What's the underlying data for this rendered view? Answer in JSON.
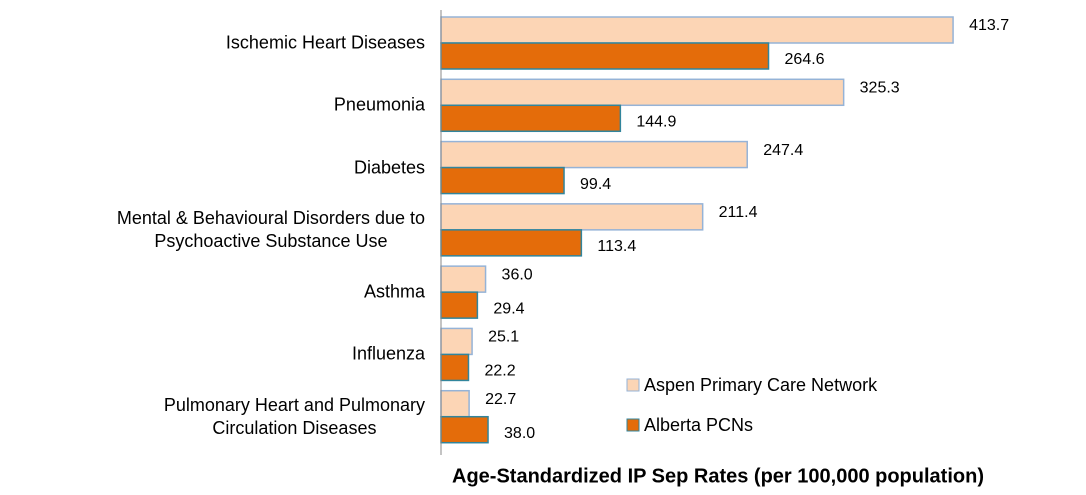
{
  "chart_data": {
    "type": "hbar",
    "categories": [
      "Ischemic Heart Diseases",
      "Pneumonia",
      "Diabetes",
      "Mental & Behavioural Disorders due to\nPsychoactive Substance Use",
      "Asthma",
      "Influenza",
      "Pulmonary Heart and Pulmonary\nCirculation Diseases"
    ],
    "series": [
      {
        "name": "Aspen Primary Care Network",
        "color": "#fcd5b5",
        "edge": "#95b3d7",
        "values": [
          413.7,
          325.3,
          247.4,
          211.4,
          36.0,
          25.1,
          22.7
        ],
        "value_labels": [
          "413.7",
          "325.3",
          "247.4",
          "211.4",
          "36.0",
          "25.1",
          "22.7"
        ]
      },
      {
        "name": "Alberta PCNs",
        "color": "#e46c0a",
        "edge": "#31859c",
        "values": [
          264.6,
          144.9,
          99.4,
          113.4,
          29.4,
          22.2,
          38.0
        ],
        "value_labels": [
          "264.6",
          "144.9",
          "99.4",
          "113.4",
          "29.4",
          "22.2",
          "38.0"
        ]
      }
    ],
    "xlabel": "Age-Standardized IP Sep Rates (per 100,000 population)",
    "xlim": [
      0,
      450
    ],
    "legend": "lower right"
  }
}
